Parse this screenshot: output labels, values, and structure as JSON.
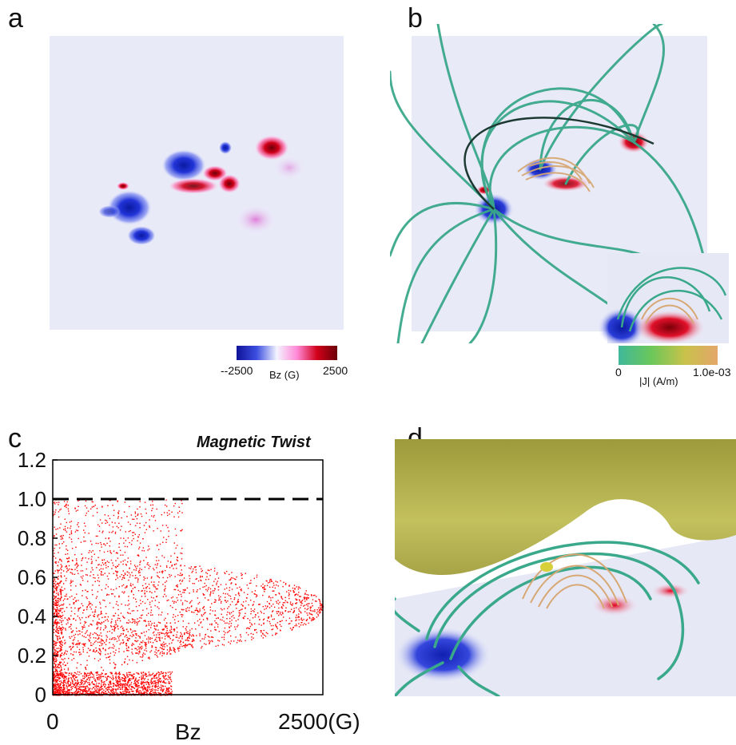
{
  "panels": {
    "a": {
      "letter": "a",
      "colorbar": {
        "min_label": "--2500",
        "max_label": "2500",
        "title": "Bz (G)",
        "colors": [
          "#1a1aa8",
          "#3c4fe0",
          "#eef0ff",
          "#ff7fd0",
          "#d1001a",
          "#7a0008"
        ]
      }
    },
    "b": {
      "letter": "b",
      "colorbar": {
        "min_label": "0",
        "max_label": "1.0e-03",
        "title": "|J| (A/m)",
        "colors": [
          "#3fb89a",
          "#6cc75a",
          "#c8c24a",
          "#e3a66a"
        ]
      }
    },
    "c": {
      "letter": "c"
    },
    "d": {
      "letter": "d"
    }
  },
  "colors": {
    "negative_polarity": "#1f2fd0",
    "positive_polarity": "#d10020",
    "field_line": "#3aa88a",
    "current_line": "#d7a874",
    "isosurface": "#b8b457"
  },
  "chart_data": {
    "type": "scatter",
    "title": "Magnetic Twist",
    "xlabel": "Bz",
    "ylabel": "",
    "xlim": [
      0,
      2500
    ],
    "ylim": [
      0,
      1.2
    ],
    "x_tick_labels": [
      "0",
      "2500(G)"
    ],
    "y_tick_labels": [
      "0",
      "0.2",
      "0.4",
      "0.6",
      "0.8",
      "1.0",
      "1.2"
    ],
    "reference_line": {
      "y": 1.0,
      "style": "dashed",
      "color": "#000000"
    },
    "grid": false,
    "marker_color": "#ff0000",
    "point_density_regions": [
      {
        "description": "dense band near zero",
        "x_range": [
          0,
          1100
        ],
        "y_range": [
          0,
          0.12
        ]
      },
      {
        "description": "lobe reaching 2500 G at twist ~0.45",
        "x_range": [
          0,
          2500
        ],
        "y_range": [
          0.1,
          0.7
        ]
      },
      {
        "description": "upper scattered points",
        "x_range": [
          0,
          1200
        ],
        "y_range": [
          0.6,
          1.0
        ]
      }
    ]
  }
}
